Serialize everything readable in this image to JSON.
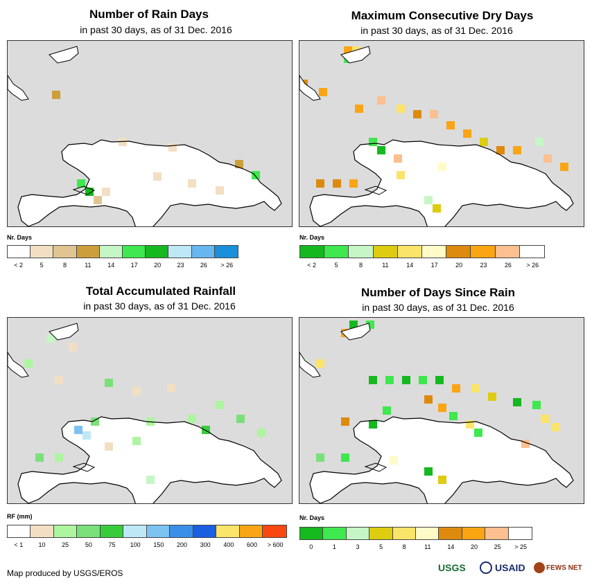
{
  "panels": [
    {
      "title": "Number of Rain Days",
      "subtitle": "in past 30 days, as of 31 Dec. 2016",
      "legend_title": "Nr. Days",
      "legend_colors": [
        "#ffffff",
        "#f2dfc3",
        "#e0c593",
        "#cc9f3a",
        "#c6f5c6",
        "#3ee84e",
        "#16b81f",
        "#bfe8f7",
        "#68b6f0",
        "#1a8fdb"
      ],
      "legend_labels": [
        "< 2",
        "5",
        "8",
        "11",
        "14",
        "17",
        "20",
        "23",
        "26",
        "> 26"
      ],
      "chart_data": {
        "type": "heatmap",
        "variable": "rain days",
        "units": "days",
        "bins": [
          "< 2",
          "5",
          "8",
          "11",
          "14",
          "17",
          "20",
          "23",
          "26",
          "> 26"
        ]
      }
    },
    {
      "title": "Maximum Consecutive Dry Days",
      "subtitle": "in past 30 days, as of 31 Dec. 2016",
      "legend_title": "Nr. Days",
      "legend_colors": [
        "#16b81f",
        "#3ee84e",
        "#c6f5c6",
        "#ddcc10",
        "#fbe46a",
        "#fffbc8",
        "#dd8a0e",
        "#faa514",
        "#fbbf90",
        "#ffffff"
      ],
      "legend_labels": [
        "< 2",
        "5",
        "8",
        "11",
        "14",
        "17",
        "20",
        "23",
        "26",
        "> 26"
      ],
      "chart_data": {
        "type": "heatmap",
        "variable": "max consecutive dry days",
        "units": "days",
        "bins": [
          "< 2",
          "5",
          "8",
          "11",
          "14",
          "17",
          "20",
          "23",
          "26",
          "> 26"
        ]
      }
    },
    {
      "title": "Total Accumulated Rainfall",
      "subtitle": "in past 30 days, as of 31 Dec. 2016",
      "legend_title": "RF (mm)",
      "legend_colors": [
        "#ffffff",
        "#f2dfc3",
        "#aef5a0",
        "#7ae07a",
        "#38cc3c",
        "#bfe8f7",
        "#7ec2f2",
        "#3c8fe8",
        "#1a5fe0",
        "#fbe46a",
        "#faa514",
        "#f84710"
      ],
      "legend_labels": [
        "< 1",
        "10",
        "25",
        "50",
        "75",
        "100",
        "150",
        "200",
        "300",
        "400",
        "600",
        "> 600"
      ],
      "chart_data": {
        "type": "heatmap",
        "variable": "accumulated rainfall",
        "units": "mm",
        "bins": [
          "< 1",
          "10",
          "25",
          "50",
          "75",
          "100",
          "150",
          "200",
          "300",
          "400",
          "600",
          "> 600"
        ]
      }
    },
    {
      "title": "Number of Days Since Rain",
      "subtitle": "in past 30 days, as of 31 Dec. 2016",
      "legend_title": "Nr. Days",
      "legend_colors": [
        "#16b81f",
        "#3ee84e",
        "#c6f5c6",
        "#ddcc10",
        "#fbe46a",
        "#fffbc8",
        "#dd8a0e",
        "#faa514",
        "#fbbf90",
        "#ffffff"
      ],
      "legend_labels": [
        "0",
        "1",
        "3",
        "5",
        "8",
        "11",
        "14",
        "20",
        "25",
        "> 25"
      ],
      "chart_data": {
        "type": "heatmap",
        "variable": "days since rain",
        "units": "days",
        "bins": [
          "0",
          "1",
          "3",
          "5",
          "8",
          "11",
          "14",
          "20",
          "25",
          "> 25"
        ]
      }
    }
  ],
  "footer": "Map produced by USGS/EROS",
  "logos": {
    "usgs": "USGS",
    "usaid": "USAID",
    "fews": "FEWS NET"
  }
}
